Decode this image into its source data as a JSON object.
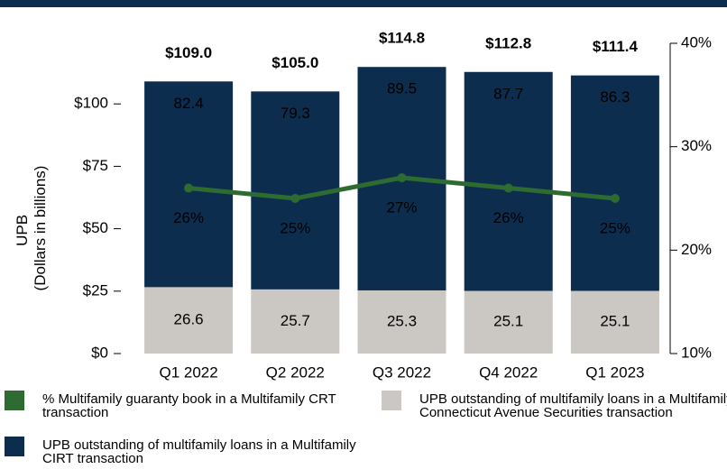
{
  "chart_data": {
    "type": "bar",
    "categories": [
      "Q1 2022",
      "Q2 2022",
      "Q3 2022",
      "Q4 2022",
      "Q1 2023"
    ],
    "y_label": [
      "UPB",
      "(Dollars in billions)"
    ],
    "series": [
      {
        "name": "UPB outstanding of multifamily loans in a Multifamily Connecticut Avenue Securities transaction",
        "color": "#cbc8c3",
        "values": [
          26.6,
          25.7,
          25.3,
          25.1,
          25.1
        ]
      },
      {
        "name": "UPB outstanding of multifamily loans in a Multifamily CIRT transaction",
        "color": "#0d2d4e",
        "values": [
          82.4,
          79.3,
          89.5,
          87.7,
          86.3
        ]
      },
      {
        "name": "% Multifamily guaranty book in a Multifamily CRT transaction",
        "color": "#2e6b30",
        "type": "line",
        "axis": "y2",
        "values": [
          26,
          25,
          27,
          26,
          25
        ],
        "value_labels": [
          "26%",
          "25%",
          "27%",
          "26%",
          "25%"
        ]
      }
    ],
    "totals": [
      109.0,
      105.0,
      114.8,
      112.8,
      111.4
    ],
    "total_labels": [
      "$109.0",
      "$105.0",
      "$114.8",
      "$112.8",
      "$111.4"
    ],
    "ylim": [
      0,
      125
    ],
    "yticks": [
      {
        "value": 0,
        "label": "$0"
      },
      {
        "value": 25,
        "label": "$25"
      },
      {
        "value": 50,
        "label": "$50"
      },
      {
        "value": 75,
        "label": "$75"
      },
      {
        "value": 100,
        "label": "$100"
      }
    ],
    "y2lim": [
      10,
      40
    ],
    "y2ticks": [
      {
        "value": 10,
        "label": "10%"
      },
      {
        "value": 20,
        "label": "20%"
      },
      {
        "value": 30,
        "label": "30%"
      },
      {
        "value": 40,
        "label": "40%"
      }
    ],
    "grid": false
  }
}
